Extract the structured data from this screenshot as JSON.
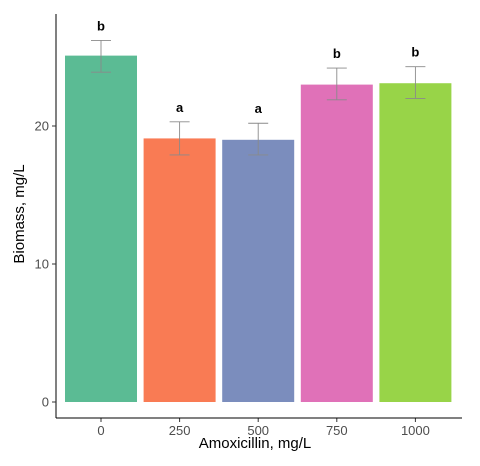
{
  "chart_data": {
    "type": "bar",
    "title": "",
    "xlabel": "Amoxicillin, mg/L",
    "ylabel": "Biomass, mg/L",
    "categories": [
      "0",
      "250",
      "500",
      "750",
      "1000"
    ],
    "values": [
      25.1,
      19.1,
      19.0,
      23.0,
      23.1
    ],
    "error_low": [
      23.9,
      17.9,
      17.9,
      21.9,
      22.0
    ],
    "error_high": [
      26.2,
      20.3,
      20.2,
      24.2,
      24.3
    ],
    "significance_labels": [
      "b",
      "a",
      "a",
      "b",
      "b"
    ],
    "colors": [
      "#5bbb94",
      "#f97b54",
      "#7b8dbd",
      "#e071b8",
      "#98d448"
    ],
    "ylim": [
      0,
      27.5
    ],
    "yticks": [
      0,
      10,
      20
    ],
    "grid": false,
    "legend": "none"
  }
}
